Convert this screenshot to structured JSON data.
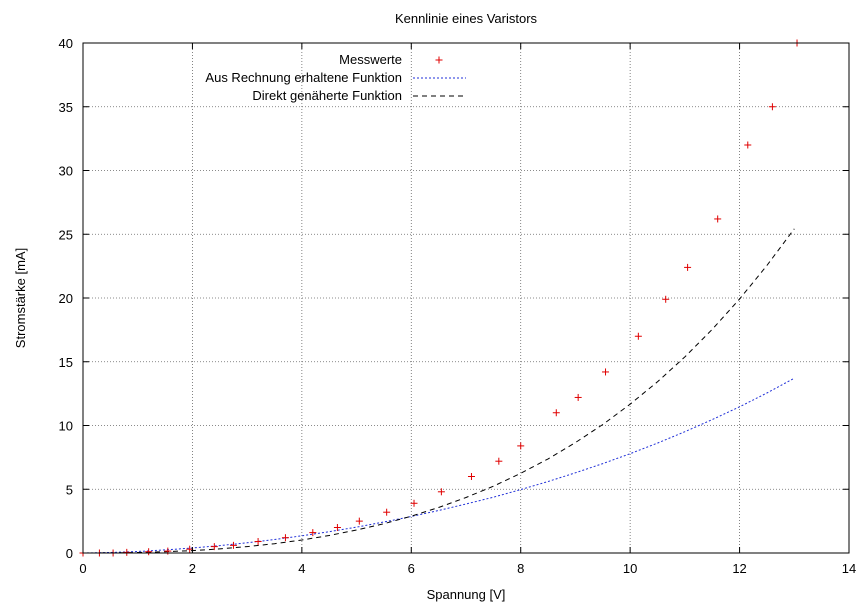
{
  "colors": {
    "measured": "#e00000",
    "calc_fn": "#1f2fd8",
    "direct_fn": "#000000",
    "grid": "#666666",
    "axis": "#000000"
  },
  "chart_data": {
    "type": "scatter",
    "title": "Kennlinie eines Varistors",
    "xlabel": "Spannung [V]",
    "ylabel": "Stromstärke [mA]",
    "xlim": [
      0,
      14
    ],
    "ylim": [
      0,
      40
    ],
    "xticks": [
      0,
      2,
      4,
      6,
      8,
      10,
      12,
      14
    ],
    "yticks": [
      0,
      5,
      10,
      15,
      20,
      25,
      30,
      35,
      40
    ],
    "grid": true,
    "legend_position": "top-left",
    "series": [
      {
        "name": "Messwerte",
        "kind": "points",
        "marker": "plus",
        "x": [
          0.0,
          0.3,
          0.55,
          0.8,
          1.2,
          1.55,
          1.95,
          2.4,
          2.75,
          3.2,
          3.7,
          4.2,
          4.65,
          5.05,
          5.55,
          6.05,
          6.55,
          7.1,
          7.6,
          8.0,
          8.65,
          9.05,
          9.55,
          10.15,
          10.65,
          11.05,
          11.6,
          12.15,
          12.6,
          13.05
        ],
        "y": [
          0.0,
          0.0,
          0.0,
          0.05,
          0.1,
          0.15,
          0.3,
          0.5,
          0.6,
          0.9,
          1.2,
          1.6,
          2.0,
          2.5,
          3.2,
          3.9,
          4.8,
          6.0,
          7.2,
          8.4,
          11.0,
          12.2,
          14.2,
          17.0,
          19.9,
          22.4,
          26.2,
          32.0,
          35.0,
          40.0
        ]
      },
      {
        "name": "Aus Rechnung erhaltene Funktion",
        "kind": "line",
        "dash": "2,2",
        "x": [
          0,
          0.5,
          1,
          1.5,
          2,
          2.5,
          3,
          3.5,
          4,
          4.5,
          5,
          5.5,
          6,
          6.5,
          7,
          7.5,
          8,
          8.5,
          9,
          9.5,
          10,
          10.5,
          11,
          11.5,
          12,
          12.5,
          13.0
        ],
        "y": [
          0.0,
          0.04,
          0.12,
          0.24,
          0.39,
          0.58,
          0.8,
          1.06,
          1.35,
          1.67,
          2.03,
          2.43,
          2.86,
          3.33,
          3.84,
          4.38,
          4.97,
          5.61,
          6.29,
          7.01,
          7.79,
          8.62,
          9.51,
          10.46,
          11.47,
          12.55,
          13.71
        ]
      },
      {
        "name": "Direkt genäherte Funktion",
        "kind": "line",
        "dash": "5,4",
        "x": [
          0,
          0.5,
          1,
          1.5,
          2,
          2.5,
          3,
          3.5,
          4,
          4.5,
          5,
          5.5,
          6,
          6.5,
          7,
          7.5,
          8,
          8.5,
          9,
          9.5,
          10,
          10.5,
          11,
          11.5,
          12,
          12.5,
          13.0
        ],
        "y": [
          0.0,
          0.01,
          0.04,
          0.1,
          0.19,
          0.32,
          0.5,
          0.73,
          1.02,
          1.37,
          1.8,
          2.3,
          2.89,
          3.57,
          4.35,
          5.24,
          6.25,
          7.38,
          8.66,
          10.08,
          11.67,
          13.43,
          15.38,
          17.54,
          19.92,
          22.55,
          25.43
        ]
      }
    ]
  }
}
